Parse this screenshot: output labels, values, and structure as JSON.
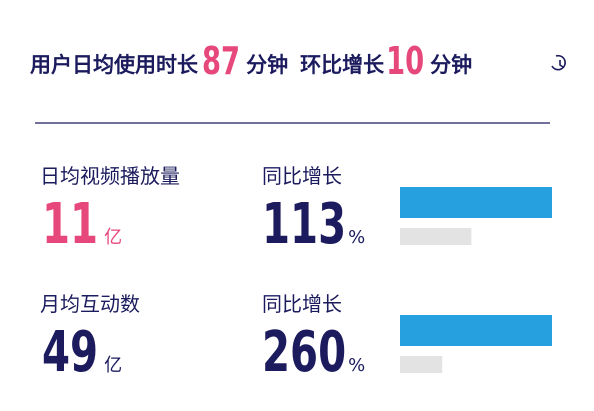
{
  "header": {
    "prefix": "用户日均使用时长",
    "value": 87,
    "unit": "分钟",
    "middle": "环比增长",
    "change": 10,
    "change_unit": "分钟"
  },
  "metrics": [
    {
      "label": "日均视频播放量",
      "value": 11,
      "unit": "亿",
      "growth_label": "同比增长",
      "growth": 113,
      "growth_unit": "%"
    },
    {
      "label": "月均互动数",
      "value": 49,
      "unit": "亿",
      "growth_label": "同比增长",
      "growth": 260,
      "growth_unit": "%"
    }
  ]
}
